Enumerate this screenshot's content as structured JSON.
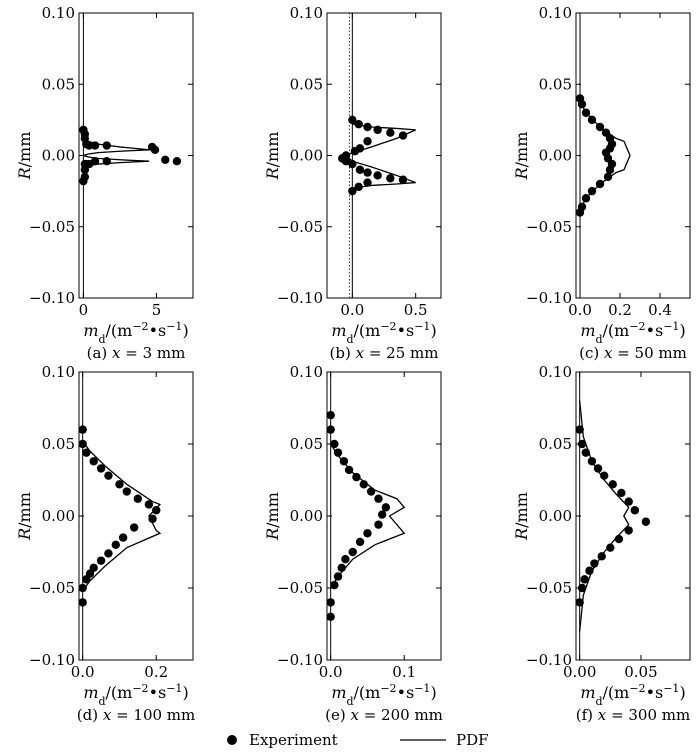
{
  "legend": {
    "experiment_label": "Experiment",
    "pdf_label": "PDF"
  },
  "chart_data": [
    {
      "type": "scatter",
      "caption": "(a) x = 3 mm",
      "xlabel": "m_d/(m^-2·s^-1)",
      "ylabel": "R/mm",
      "xlim": [
        -0.3,
        7.5
      ],
      "ylim": [
        -0.1,
        0.1
      ],
      "xticks": [
        0,
        5
      ],
      "yticks": [
        0.1,
        0.05,
        0.0,
        -0.05,
        -0.1
      ],
      "xtick_labels": [
        "0",
        "5"
      ],
      "ytick_labels": [
        "0.10",
        "0.05",
        "0.00",
        "−0.05",
        "−0.10"
      ],
      "series": [
        {
          "name": "Experiment",
          "marker": "circle",
          "x": [
            0,
            0.1,
            0.1,
            0.2,
            0.4,
            0.8,
            1.6,
            4.7,
            4.9,
            5.6,
            6.4,
            0.1,
            0.2,
            0.4,
            0.8,
            1.6,
            0.1,
            0.1,
            0.0
          ],
          "y": [
            0.018,
            0.015,
            0.012,
            0.008,
            0.007,
            0.007,
            0.007,
            0.006,
            0.004,
            -0.003,
            -0.004,
            -0.006,
            -0.006,
            -0.006,
            -0.004,
            -0.004,
            -0.01,
            -0.015,
            -0.018
          ]
        },
        {
          "name": "PDF",
          "marker": "line",
          "x": [
            0,
            0.3,
            1.0,
            2.5,
            4.5,
            2.5,
            1.0,
            0.3,
            0,
            0.3,
            1.0,
            2.5,
            4.5,
            2.5,
            1.0,
            0.3,
            0
          ],
          "y": [
            0.012,
            0.01,
            0.008,
            0.006,
            0.004,
            0.003,
            0.002,
            0.001,
            0.0,
            -0.001,
            -0.002,
            -0.003,
            -0.004,
            -0.005,
            -0.006,
            -0.007,
            -0.009
          ]
        }
      ]
    },
    {
      "type": "scatter",
      "caption": "(b) x = 25 mm",
      "xlabel": "m_d/(m^-2·s^-1)",
      "ylabel": "R/mm",
      "xlim": [
        -0.2,
        0.7
      ],
      "ylim": [
        -0.1,
        0.1
      ],
      "xticks": [
        0.0,
        0.5
      ],
      "yticks": [
        0.1,
        0.05,
        0.0,
        -0.05,
        -0.1
      ],
      "xtick_labels": [
        "0.0",
        "0.5"
      ],
      "ytick_labels": [
        "0.10",
        "0.05",
        "0.00",
        "−0.05",
        "−0.10"
      ],
      "series": [
        {
          "name": "Experiment",
          "marker": "circle",
          "x": [
            0.0,
            0.05,
            0.12,
            0.2,
            0.3,
            0.4,
            0.12,
            0.06,
            0.02,
            -0.05,
            -0.08,
            -0.05,
            0.0,
            0.06,
            0.12,
            0.2,
            0.3,
            0.4,
            0.12,
            0.05,
            0.0
          ],
          "y": [
            0.025,
            0.022,
            0.02,
            0.018,
            0.016,
            0.014,
            0.01,
            0.005,
            0.003,
            0.0,
            -0.002,
            -0.004,
            -0.006,
            -0.01,
            -0.012,
            -0.014,
            -0.016,
            -0.017,
            -0.019,
            -0.022,
            -0.025
          ]
        },
        {
          "name": "PDF",
          "marker": "line",
          "x": [
            0.0,
            0.15,
            0.35,
            0.5,
            0.35,
            0.15,
            0.0,
            -0.05,
            0.0,
            0.15,
            0.35,
            0.5,
            0.35,
            0.15,
            0.0
          ],
          "y": [
            0.022,
            0.02,
            0.019,
            0.018,
            0.012,
            0.006,
            0.002,
            0.0,
            -0.004,
            -0.008,
            -0.014,
            -0.019,
            -0.02,
            -0.021,
            -0.023
          ]
        }
      ]
    },
    {
      "type": "scatter",
      "caption": "(c) x = 50 mm",
      "xlabel": "m_d/(m^-2·s^-1)",
      "ylabel": "R/mm",
      "xlim": [
        -0.02,
        0.55
      ],
      "ylim": [
        -0.1,
        0.1
      ],
      "xticks": [
        0.0,
        0.2,
        0.4
      ],
      "yticks": [
        0.1,
        0.05,
        0.0,
        -0.05,
        -0.1
      ],
      "xtick_labels": [
        "0.0",
        "0.2",
        "0.4"
      ],
      "ytick_labels": [
        "0.10",
        "0.05",
        "0.00",
        "−0.05",
        "−0.10"
      ],
      "series": [
        {
          "name": "Experiment",
          "marker": "circle",
          "x": [
            0.0,
            0.01,
            0.03,
            0.06,
            0.1,
            0.13,
            0.15,
            0.16,
            0.15,
            0.13,
            0.14,
            0.16,
            0.15,
            0.14,
            0.1,
            0.06,
            0.03,
            0.01,
            0.0
          ],
          "y": [
            0.04,
            0.036,
            0.03,
            0.025,
            0.02,
            0.016,
            0.012,
            0.008,
            0.005,
            0.002,
            -0.002,
            -0.006,
            -0.01,
            -0.015,
            -0.02,
            -0.025,
            -0.03,
            -0.036,
            -0.04
          ]
        },
        {
          "name": "PDF",
          "marker": "line",
          "x": [
            0.0,
            0.03,
            0.1,
            0.18,
            0.22,
            0.25,
            0.22,
            0.18,
            0.1,
            0.03,
            0.0
          ],
          "y": [
            0.038,
            0.03,
            0.02,
            0.012,
            0.01,
            0.0,
            -0.01,
            -0.012,
            -0.02,
            -0.03,
            -0.038
          ]
        }
      ]
    },
    {
      "type": "scatter",
      "caption": "(d) x = 100 mm",
      "xlabel": "m_d/(m^-2·s^-1)",
      "ylabel": "R/mm",
      "xlim": [
        -0.01,
        0.3
      ],
      "ylim": [
        -0.1,
        0.1
      ],
      "xticks": [
        0.0,
        0.2
      ],
      "yticks": [
        0.1,
        0.05,
        0.0,
        -0.05,
        -0.1
      ],
      "xtick_labels": [
        "0.0",
        "0.2"
      ],
      "ytick_labels": [
        "0.10",
        "0.05",
        "0.00",
        "−0.05",
        "−0.10"
      ],
      "series": [
        {
          "name": "Experiment",
          "marker": "circle",
          "x": [
            0.0,
            0.0,
            0.01,
            0.03,
            0.05,
            0.07,
            0.1,
            0.12,
            0.15,
            0.18,
            0.2,
            0.19,
            0.14,
            0.11,
            0.09,
            0.07,
            0.05,
            0.03,
            0.02,
            0.01,
            0.0,
            0.0
          ],
          "y": [
            0.06,
            0.05,
            0.044,
            0.038,
            0.033,
            0.028,
            0.022,
            0.017,
            0.012,
            0.008,
            0.004,
            -0.002,
            -0.008,
            -0.015,
            -0.02,
            -0.026,
            -0.031,
            -0.036,
            -0.04,
            -0.044,
            -0.05,
            -0.06
          ]
        },
        {
          "name": "PDF",
          "marker": "line",
          "x": [
            0.0,
            0.02,
            0.06,
            0.12,
            0.19,
            0.21,
            0.18,
            0.2,
            0.21,
            0.12,
            0.06,
            0.02,
            0.0
          ],
          "y": [
            0.052,
            0.045,
            0.035,
            0.022,
            0.01,
            0.008,
            0.0,
            -0.01,
            -0.012,
            -0.022,
            -0.035,
            -0.045,
            -0.052
          ]
        }
      ]
    },
    {
      "type": "scatter",
      "caption": "(e) x = 200 mm",
      "xlabel": "m_d/(m^-2·s^-1)",
      "ylabel": "R/mm",
      "xlim": [
        -0.005,
        0.15
      ],
      "ylim": [
        -0.1,
        0.1
      ],
      "xticks": [
        0.0,
        0.1
      ],
      "yticks": [
        0.1,
        0.05,
        0.0,
        -0.05,
        -0.1
      ],
      "xtick_labels": [
        "0.0",
        "0.1"
      ],
      "ytick_labels": [
        "0.10",
        "0.05",
        "0.00",
        "−0.05",
        "−0.10"
      ],
      "series": [
        {
          "name": "Experiment",
          "marker": "circle",
          "x": [
            0.0,
            0.0,
            0.005,
            0.01,
            0.018,
            0.025,
            0.035,
            0.045,
            0.055,
            0.065,
            0.075,
            0.07,
            0.065,
            0.05,
            0.04,
            0.03,
            0.02,
            0.015,
            0.01,
            0.005,
            0.0,
            0.0
          ],
          "y": [
            0.07,
            0.06,
            0.05,
            0.044,
            0.038,
            0.032,
            0.027,
            0.022,
            0.017,
            0.012,
            0.006,
            0.001,
            -0.006,
            -0.012,
            -0.018,
            -0.025,
            -0.03,
            -0.036,
            -0.042,
            -0.048,
            -0.06,
            -0.07
          ]
        },
        {
          "name": "PDF",
          "marker": "line",
          "x": [
            0.0,
            0.01,
            0.03,
            0.06,
            0.09,
            0.1,
            0.08,
            0.09,
            0.1,
            0.06,
            0.03,
            0.01,
            0.0
          ],
          "y": [
            0.05,
            0.042,
            0.03,
            0.018,
            0.012,
            0.006,
            0.0,
            -0.006,
            -0.012,
            -0.02,
            -0.03,
            -0.042,
            -0.05
          ]
        }
      ]
    },
    {
      "type": "scatter",
      "caption": "(f) x = 300 mm",
      "xlabel": "m_d/(m^-2·s^-1)",
      "ylabel": "R/mm",
      "xlim": [
        -0.003,
        0.09
      ],
      "ylim": [
        -0.1,
        0.1
      ],
      "xticks": [
        0.0,
        0.05
      ],
      "yticks": [
        0.1,
        0.05,
        0.0,
        -0.05,
        -0.1
      ],
      "xtick_labels": [
        "0.00",
        "0.05"
      ],
      "ytick_labels": [
        "0.10",
        "0.05",
        "0.00",
        "−0.05",
        "−0.10"
      ],
      "series": [
        {
          "name": "Experiment",
          "marker": "circle",
          "x": [
            0.0,
            0.002,
            0.005,
            0.01,
            0.015,
            0.02,
            0.027,
            0.034,
            0.04,
            0.045,
            0.054,
            0.04,
            0.032,
            0.025,
            0.018,
            0.012,
            0.008,
            0.004,
            0.002,
            0.0
          ],
          "y": [
            0.06,
            0.05,
            0.044,
            0.038,
            0.033,
            0.028,
            0.022,
            0.016,
            0.01,
            0.004,
            -0.004,
            -0.01,
            -0.016,
            -0.022,
            -0.028,
            -0.033,
            -0.038,
            -0.044,
            -0.05,
            -0.06
          ]
        },
        {
          "name": "PDF",
          "marker": "line",
          "x": [
            0.0,
            0.003,
            0.01,
            0.02,
            0.03,
            0.04,
            0.036,
            0.04,
            0.03,
            0.02,
            0.01,
            0.003,
            0.0
          ],
          "y": [
            0.08,
            0.055,
            0.038,
            0.025,
            0.015,
            0.006,
            0.0,
            -0.006,
            -0.015,
            -0.025,
            -0.038,
            -0.055,
            -0.08
          ]
        }
      ]
    }
  ]
}
